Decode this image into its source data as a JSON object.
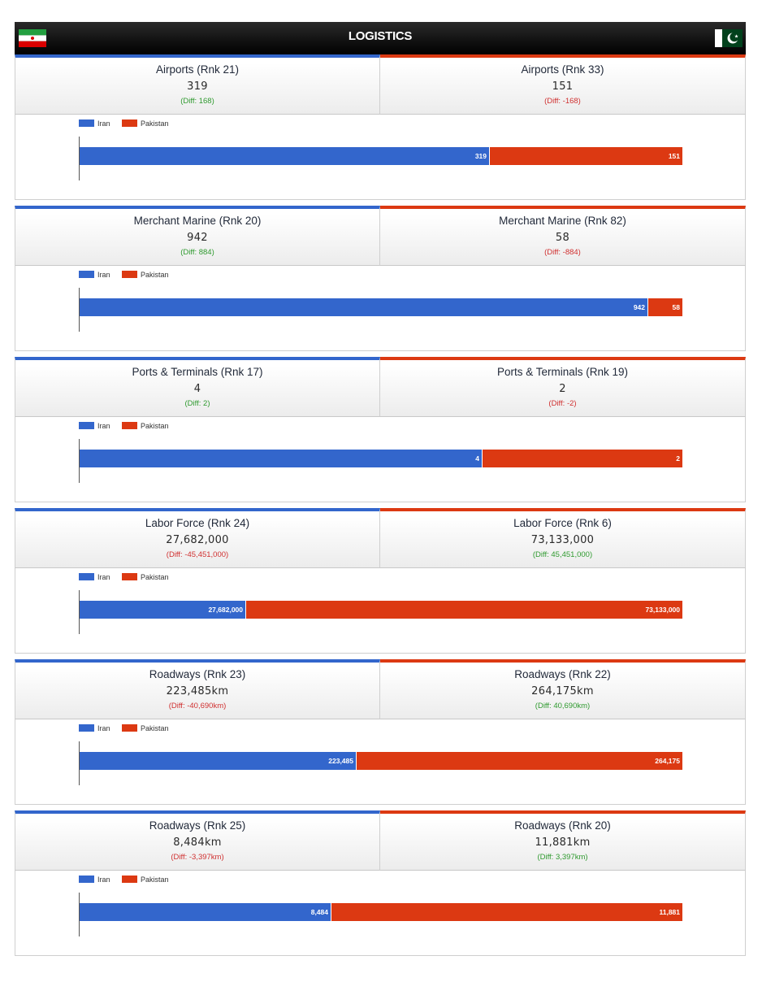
{
  "header": {
    "title": "LOGISTICS",
    "left_flag": "iran-flag-icon",
    "right_flag": "pakistan-flag-icon"
  },
  "colors": {
    "iran": "#3366cc",
    "pakistan": "#dc3912",
    "positive_diff": "#2f9a2f",
    "negative_diff": "#d03030"
  },
  "legend": {
    "left": "Iran",
    "right": "Pakistan"
  },
  "blocks": [
    {
      "left": {
        "rank": "Airports (Rnk 21)",
        "value": "319",
        "diff": "(Diff: 168)",
        "positive": true
      },
      "right": {
        "rank": "Airports (Rnk 33)",
        "value": "151",
        "diff": "(Diff: -168)",
        "positive": false
      },
      "chart": {
        "left_value": 319,
        "right_value": 151,
        "left_label": "319",
        "right_label": "151"
      }
    },
    {
      "left": {
        "rank": "Merchant Marine (Rnk 20)",
        "value": "942",
        "diff": "(Diff: 884)",
        "positive": true
      },
      "right": {
        "rank": "Merchant Marine (Rnk 82)",
        "value": "58",
        "diff": "(Diff: -884)",
        "positive": false
      },
      "chart": {
        "left_value": 942,
        "right_value": 58,
        "left_label": "942",
        "right_label": "58"
      }
    },
    {
      "left": {
        "rank": "Ports & Terminals (Rnk 17)",
        "value": "4",
        "diff": "(Diff: 2)",
        "positive": true
      },
      "right": {
        "rank": "Ports & Terminals (Rnk 19)",
        "value": "2",
        "diff": "(Diff: -2)",
        "positive": false
      },
      "chart": {
        "left_value": 4,
        "right_value": 2,
        "left_label": "4",
        "right_label": "2"
      }
    },
    {
      "left": {
        "rank": "Labor Force (Rnk 24)",
        "value": "27,682,000",
        "diff": "(Diff: -45,451,000)",
        "positive": false
      },
      "right": {
        "rank": "Labor Force (Rnk 6)",
        "value": "73,133,000",
        "diff": "(Diff: 45,451,000)",
        "positive": true
      },
      "chart": {
        "left_value": 27682000,
        "right_value": 73133000,
        "left_label": "27,682,000",
        "right_label": "73,133,000"
      }
    },
    {
      "left": {
        "rank": "Roadways (Rnk 23)",
        "value": "223,485km",
        "diff": "(Diff: -40,690km)",
        "positive": false
      },
      "right": {
        "rank": "Roadways (Rnk 22)",
        "value": "264,175km",
        "diff": "(Diff: 40,690km)",
        "positive": true
      },
      "chart": {
        "left_value": 223485,
        "right_value": 264175,
        "left_label": "223,485",
        "right_label": "264,175"
      }
    },
    {
      "left": {
        "rank": "Roadways (Rnk 25)",
        "value": "8,484km",
        "diff": "(Diff: -3,397km)",
        "positive": false
      },
      "right": {
        "rank": "Roadways (Rnk 20)",
        "value": "11,881km",
        "diff": "(Diff: 3,397km)",
        "positive": true
      },
      "chart": {
        "left_value": 8484,
        "right_value": 11881,
        "left_label": "8,484",
        "right_label": "11,881"
      }
    }
  ]
}
